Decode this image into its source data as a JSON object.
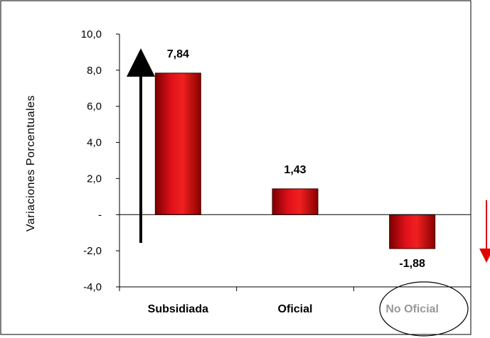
{
  "colors": {
    "bar_fill": "#e0101a",
    "bar_dark": "#8a0000",
    "bar_stroke": "#400000",
    "label_muted": "#999999",
    "arrow_up": "#000000",
    "arrow_down": "#e00000",
    "frame": "#000000"
  },
  "annotations": {
    "up_arrow_icon": "arrow-up-icon",
    "down_arrow_icon": "arrow-down-icon",
    "highlight_ellipse": "circled-category"
  },
  "chart_data": {
    "type": "bar",
    "title": "",
    "xlabel": "",
    "ylabel": "Variaciones  Porcentuales",
    "ylim": [
      -4,
      10
    ],
    "yticks": [
      {
        "value": 10,
        "label": "10,0"
      },
      {
        "value": 8,
        "label": "8,0"
      },
      {
        "value": 6,
        "label": "6,0"
      },
      {
        "value": 4,
        "label": "4,0"
      },
      {
        "value": 2,
        "label": "2,0"
      },
      {
        "value": 0,
        "label": "-"
      },
      {
        "value": -2,
        "label": "-2,0"
      },
      {
        "value": -4,
        "label": "-4,0"
      }
    ],
    "categories": [
      "Subsidiada",
      "Oficial",
      "No Oficial"
    ],
    "values": [
      7.84,
      1.43,
      -1.88
    ],
    "value_labels": [
      "7,84",
      "1,43",
      "-1,88"
    ],
    "grid": false,
    "legend": "none",
    "highlighted_category": "No Oficial"
  }
}
